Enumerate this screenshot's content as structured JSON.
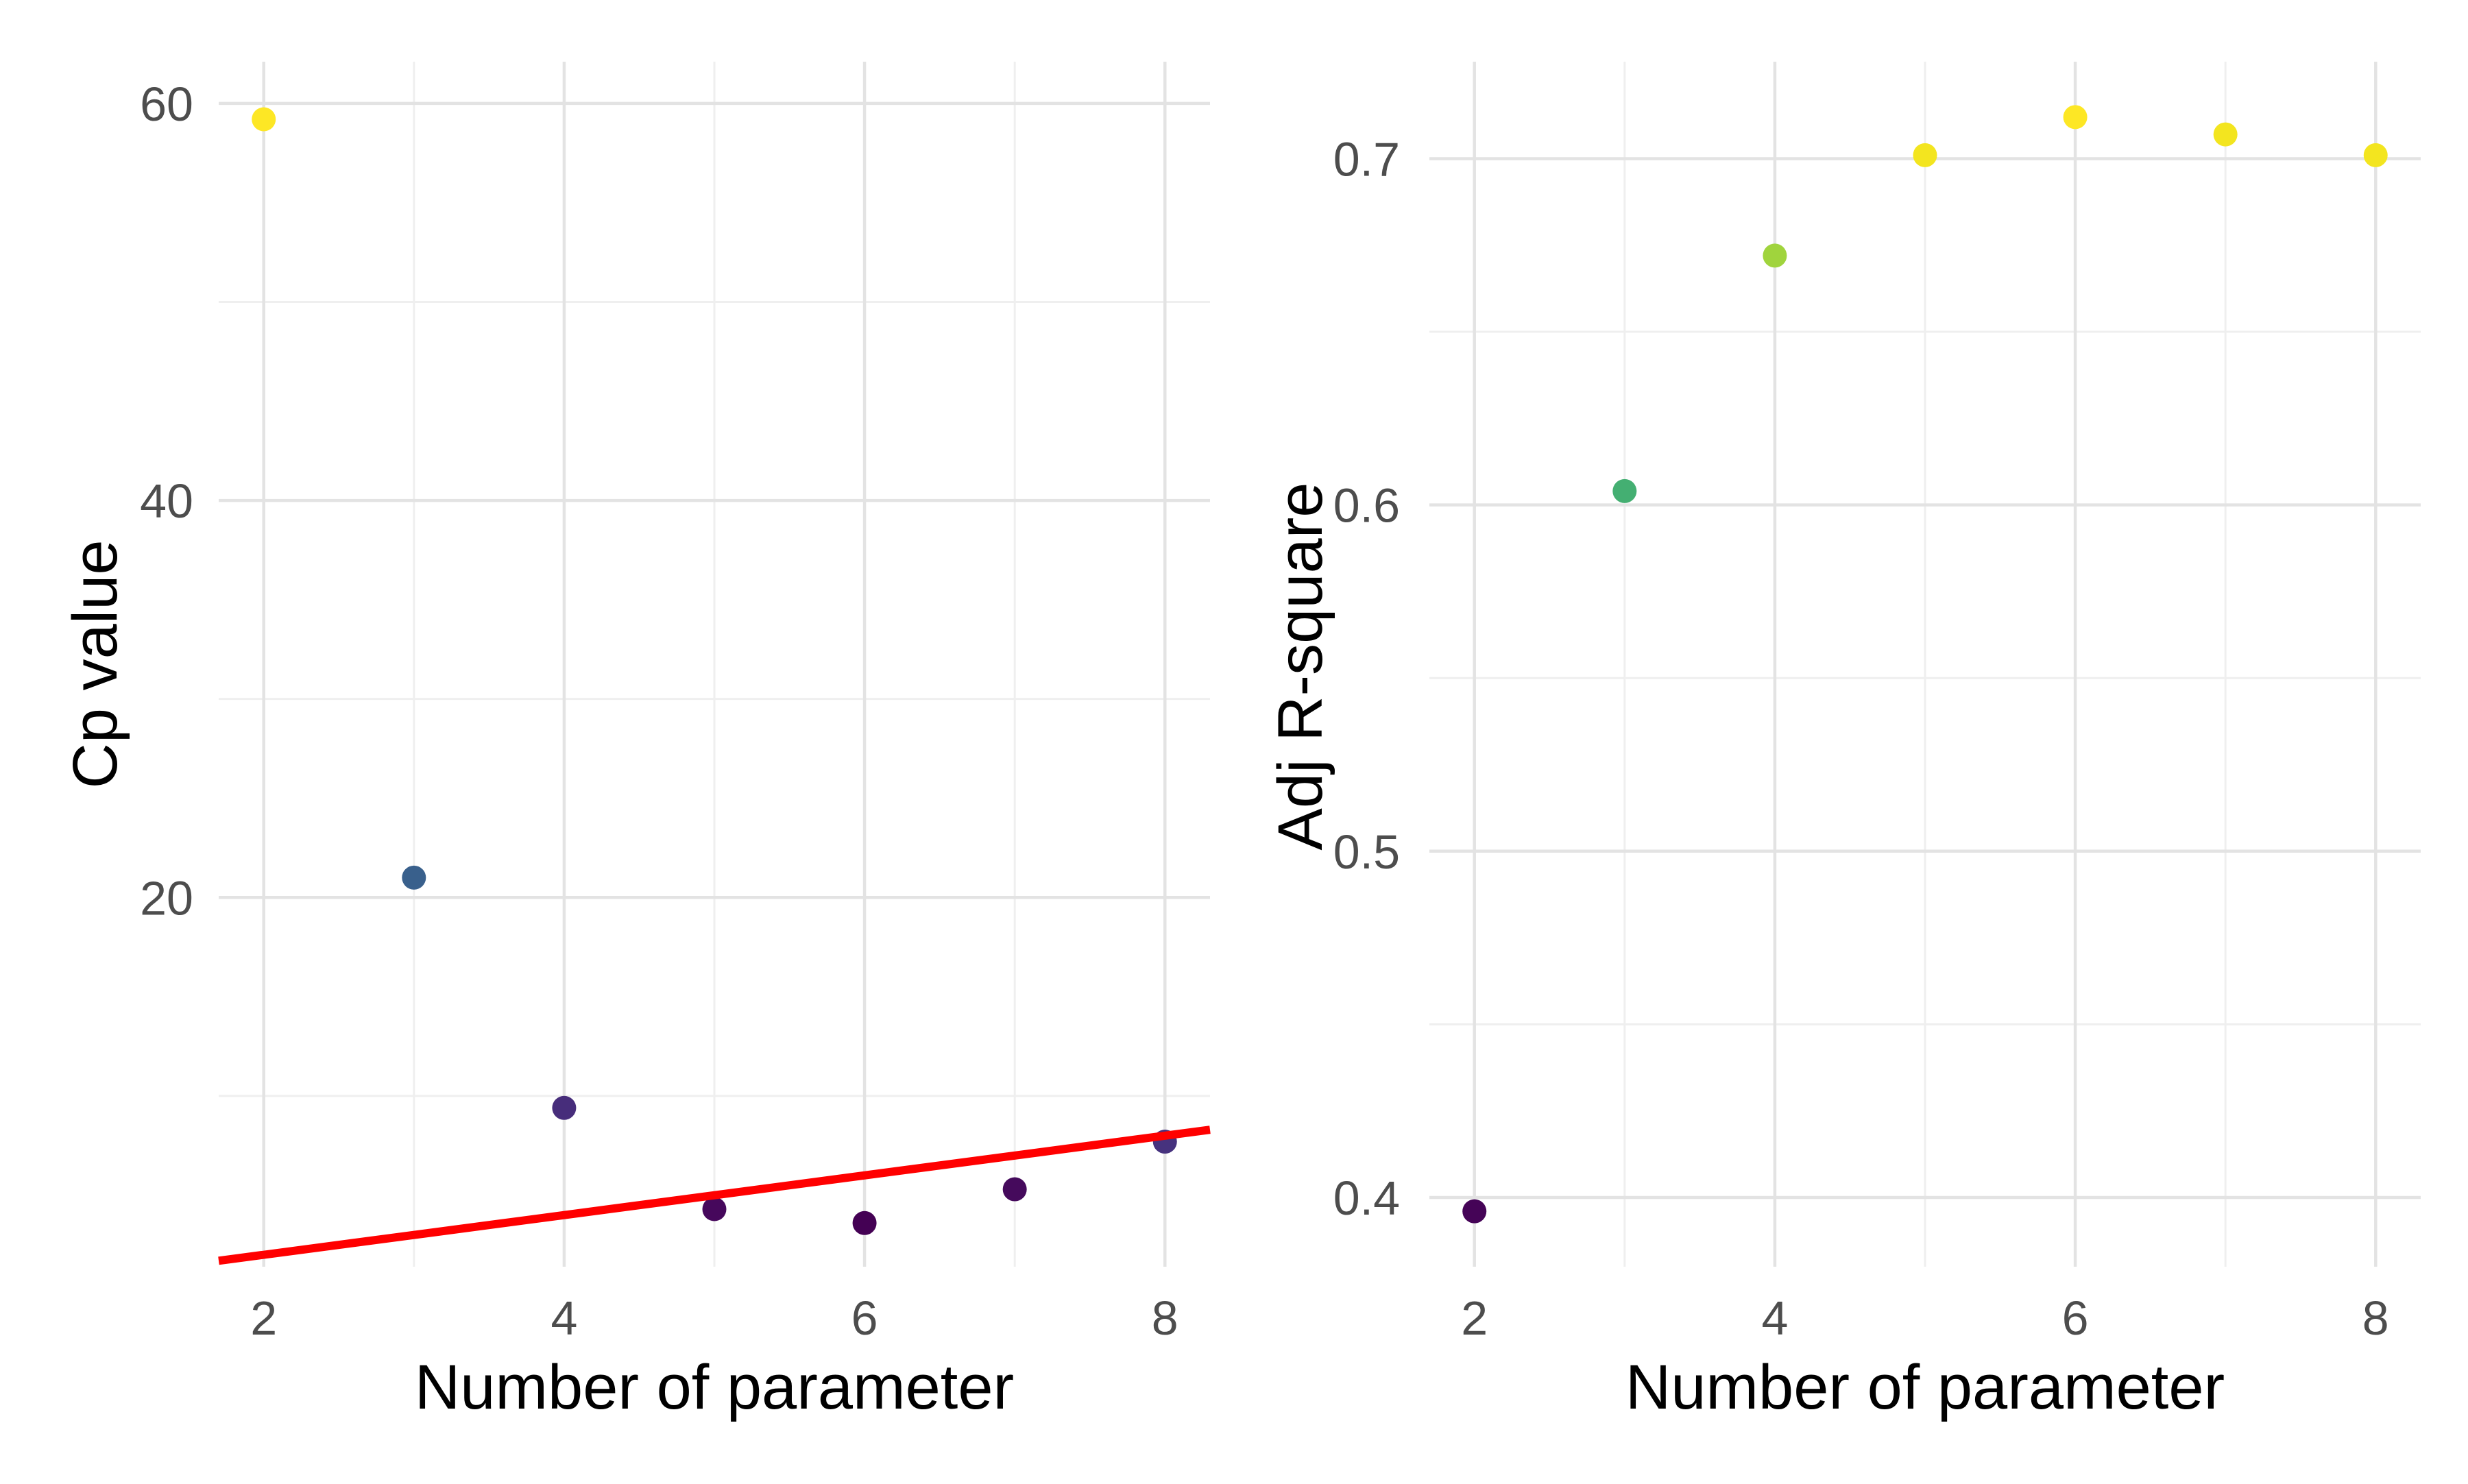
{
  "chart_data": [
    {
      "type": "scatter",
      "panel": "left",
      "title": "",
      "xlabel": "Number of parameter",
      "ylabel": "Cp value",
      "xlim": [
        1.7,
        8.3
      ],
      "ylim": [
        1.4,
        62.1
      ],
      "x_breaks": [
        {
          "v": 2,
          "label": "2"
        },
        {
          "v": 4,
          "label": "4"
        },
        {
          "v": 6,
          "label": "6"
        },
        {
          "v": 8,
          "label": "8"
        }
      ],
      "x_minor": [
        3,
        5,
        7
      ],
      "y_breaks": [
        {
          "v": 20,
          "label": "20"
        },
        {
          "v": 40,
          "label": "40"
        },
        {
          "v": 60,
          "label": "60"
        }
      ],
      "y_minor": [
        10,
        30,
        50
      ],
      "grid": true,
      "legend_position": "none",
      "points": [
        {
          "x": 2,
          "y": 59.2,
          "color": "#FDE725"
        },
        {
          "x": 3,
          "y": 21.0,
          "color": "#39608C"
        },
        {
          "x": 4,
          "y": 9.4,
          "color": "#472D7B"
        },
        {
          "x": 5,
          "y": 4.3,
          "color": "#46085C"
        },
        {
          "x": 6,
          "y": 3.6,
          "color": "#440154"
        },
        {
          "x": 7,
          "y": 5.3,
          "color": "#450A5C"
        },
        {
          "x": 8,
          "y": 7.7,
          "color": "#46327E"
        }
      ],
      "abline": {
        "slope": 1,
        "intercept": 0,
        "color": "#FF0000",
        "width": 12
      }
    },
    {
      "type": "scatter",
      "panel": "right",
      "title": "",
      "xlabel": "Number of parameter",
      "ylabel": "Adj R-square",
      "xlim": [
        1.7,
        8.3
      ],
      "ylim": [
        0.38,
        0.728
      ],
      "x_breaks": [
        {
          "v": 2,
          "label": "2"
        },
        {
          "v": 4,
          "label": "4"
        },
        {
          "v": 6,
          "label": "6"
        },
        {
          "v": 8,
          "label": "8"
        }
      ],
      "x_minor": [
        3,
        5,
        7
      ],
      "y_breaks": [
        {
          "v": 0.4,
          "label": "0.4"
        },
        {
          "v": 0.5,
          "label": "0.5"
        },
        {
          "v": 0.6,
          "label": "0.6"
        },
        {
          "v": 0.7,
          "label": "0.7"
        }
      ],
      "y_minor": [
        0.45,
        0.55,
        0.65
      ],
      "grid": true,
      "legend_position": "none",
      "points": [
        {
          "x": 2,
          "y": 0.396,
          "color": "#450457"
        },
        {
          "x": 3,
          "y": 0.604,
          "color": "#44AF72"
        },
        {
          "x": 4,
          "y": 0.672,
          "color": "#A0D43D"
        },
        {
          "x": 5,
          "y": 0.701,
          "color": "#F3E51F"
        },
        {
          "x": 6,
          "y": 0.712,
          "color": "#FDE725"
        },
        {
          "x": 7,
          "y": 0.707,
          "color": "#F3E51F"
        },
        {
          "x": 8,
          "y": 0.701,
          "color": "#F3E51F"
        }
      ]
    }
  ],
  "style": {
    "background": "#FFFFFF",
    "grid_major_color": "#E3E3E3",
    "grid_minor_color": "#EFEFEF",
    "tick_label_color": "#4D4D4D",
    "axis_title_color": "#000000",
    "point_radius": 17.5,
    "ref_line_color": "#FF0000"
  }
}
